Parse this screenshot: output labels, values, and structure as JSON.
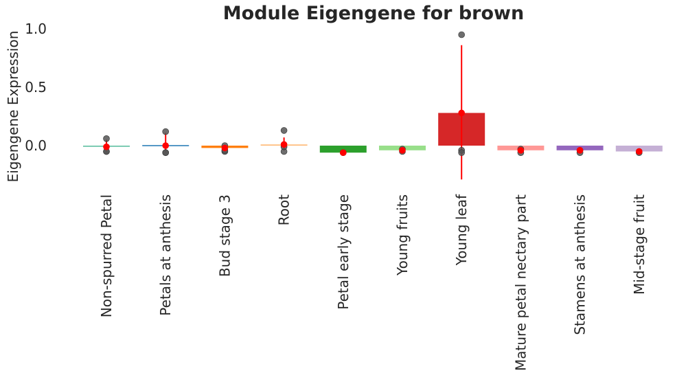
{
  "chart_data": {
    "type": "bar",
    "title": "Module Eigengene for brown",
    "xlabel": "",
    "ylabel": "Eigengene Expression",
    "ylim": [
      -0.29,
      1.0
    ],
    "yticks": [
      0.0,
      0.5,
      1.0
    ],
    "ytick_labels": [
      "0.0",
      "0.5",
      "1.0"
    ],
    "grid": false,
    "legend": "none",
    "categories": [
      "Non-spurred Petal",
      "Petals at anthesis",
      "Bud stage 3",
      "Root",
      "Petal early stage",
      "Young fruits",
      "Young leaf",
      "Mature petal nectary part",
      "Stamens at anthesis",
      "Mid-stage fruit"
    ],
    "values": [
      -0.01,
      0.0,
      -0.02,
      0.01,
      -0.06,
      -0.04,
      0.28,
      -0.04,
      -0.04,
      -0.05
    ],
    "bar_colors": [
      "#66c2a5",
      "#1f77b4",
      "#ff7f0e",
      "#ffbb78",
      "#2ca02c",
      "#98df8a",
      "#d62728",
      "#ff9896",
      "#9467bd",
      "#c5b0d5"
    ],
    "error_low": [
      -0.06,
      -0.06,
      -0.05,
      -0.04,
      -0.06,
      -0.05,
      -0.29,
      -0.06,
      -0.06,
      -0.06
    ],
    "error_high": [
      0.05,
      0.11,
      0.0,
      0.07,
      -0.06,
      -0.03,
      0.86,
      -0.03,
      -0.03,
      -0.05
    ],
    "replicates": [
      [
        0.06,
        -0.05,
        -0.05
      ],
      [
        0.12,
        -0.06,
        -0.06
      ],
      [
        0.0,
        -0.05,
        -0.04
      ],
      [
        0.13,
        -0.05,
        -0.01
      ],
      [
        -0.06,
        -0.06
      ],
      [
        -0.03,
        -0.05
      ],
      [
        0.95,
        -0.04,
        -0.06
      ],
      [
        -0.03,
        -0.06
      ],
      [
        -0.04,
        -0.06
      ],
      [
        -0.06,
        -0.05
      ]
    ],
    "replicate_color": "#555555",
    "mean_color": "#ff0000"
  }
}
